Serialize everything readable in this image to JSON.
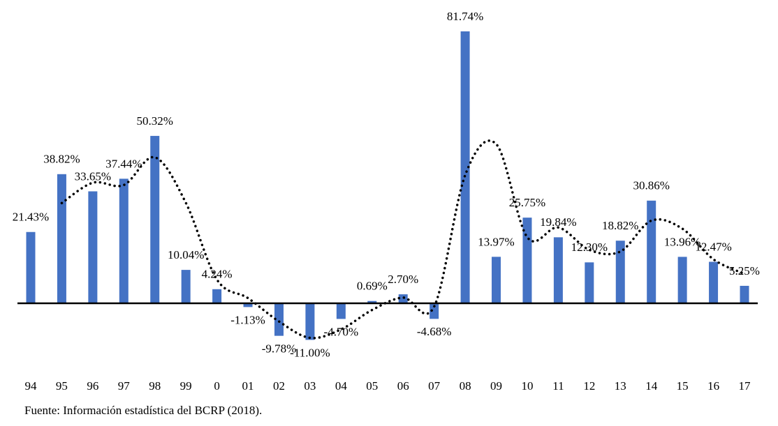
{
  "chart_data": {
    "type": "bar",
    "categories": [
      "94",
      "95",
      "96",
      "97",
      "98",
      "99",
      "0",
      "01",
      "02",
      "03",
      "04",
      "05",
      "06",
      "07",
      "08",
      "09",
      "10",
      "11",
      "12",
      "13",
      "14",
      "15",
      "16",
      "17"
    ],
    "values": [
      21.43,
      38.82,
      33.65,
      37.44,
      50.32,
      10.04,
      4.24,
      -1.13,
      -9.78,
      -11.0,
      -4.7,
      0.69,
      2.7,
      -4.68,
      81.74,
      13.97,
      25.75,
      19.84,
      12.3,
      18.82,
      30.86,
      13.96,
      12.47,
      5.25
    ],
    "value_labels": [
      "21.43%",
      "38.82%",
      "33.65%",
      "37.44%",
      "50.32%",
      "10.04%",
      "4.24%",
      "-1.13%",
      "-9.78%",
      "-11.00%",
      "-4.70%",
      "0.69%",
      "2.70%",
      "-4.68%",
      "81.74%",
      "13.97%",
      "25.75%",
      "19.84%",
      "12.30%",
      "18.82%",
      "30.86%",
      "13.96%",
      "12.47%",
      "5.25%"
    ],
    "color": "#4472c4",
    "moving_average": [
      null,
      30.13,
      36.24,
      35.55,
      43.88,
      30.18,
      7.14,
      1.56,
      -5.46,
      -10.39,
      -7.85,
      -2.01,
      1.7,
      -0.99,
      38.53,
      47.86,
      19.86,
      22.8,
      16.07,
      15.56,
      24.84,
      22.41,
      13.22,
      8.86
    ],
    "moving_average_color": "#000000",
    "source": "Fuente: Información estadística del BCRP (2018)."
  }
}
